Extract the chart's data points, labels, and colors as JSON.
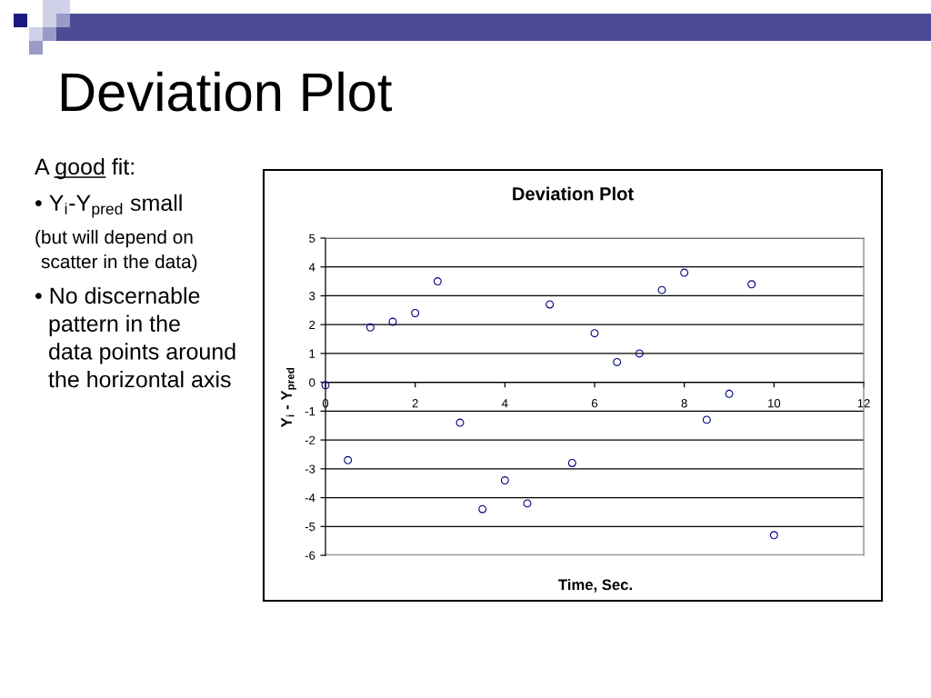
{
  "chart_data": {
    "type": "scatter",
    "title": "Deviation Plot",
    "xlabel": "Time, Sec.",
    "ylabel": "Y$_{i}$ - Y$_{pred}$",
    "x": [
      0,
      0.5,
      1,
      1.5,
      2,
      2.5,
      3,
      3.5,
      4,
      4.5,
      5,
      5.5,
      6,
      6.5,
      7,
      7.5,
      8,
      8.5,
      9,
      9.5,
      10
    ],
    "series": [
      {
        "color": "#000080",
        "values": [
          -0.1,
          -2.7,
          1.9,
          2.1,
          2.4,
          3.5,
          -1.4,
          -4.4,
          -3.4,
          -4.2,
          2.7,
          -2.8,
          1.7,
          0.7,
          1.0,
          3.2,
          3.8,
          -1.3,
          -0.4,
          3.4,
          -5.3
        ]
      }
    ],
    "marker": "circle",
    "xlim": [
      0,
      12
    ],
    "xticks": [
      0,
      2,
      4,
      6,
      8,
      10,
      12
    ],
    "ylim": [
      -6,
      5
    ],
    "yticks": [
      -6,
      -5,
      -4,
      -3,
      -2,
      -1,
      0,
      1,
      2,
      3,
      4,
      5
    ],
    "grid": "y",
    "annotations": [
      "Deviation Plot",
      "A good fit:",
      "• Y$_{i}$-Y$_{pred}$ small",
      "(but will depend on\nscatter in the data)",
      "• No discernable\npattern in the\ndata points around\nthe horizontal axis"
    ]
  }
}
